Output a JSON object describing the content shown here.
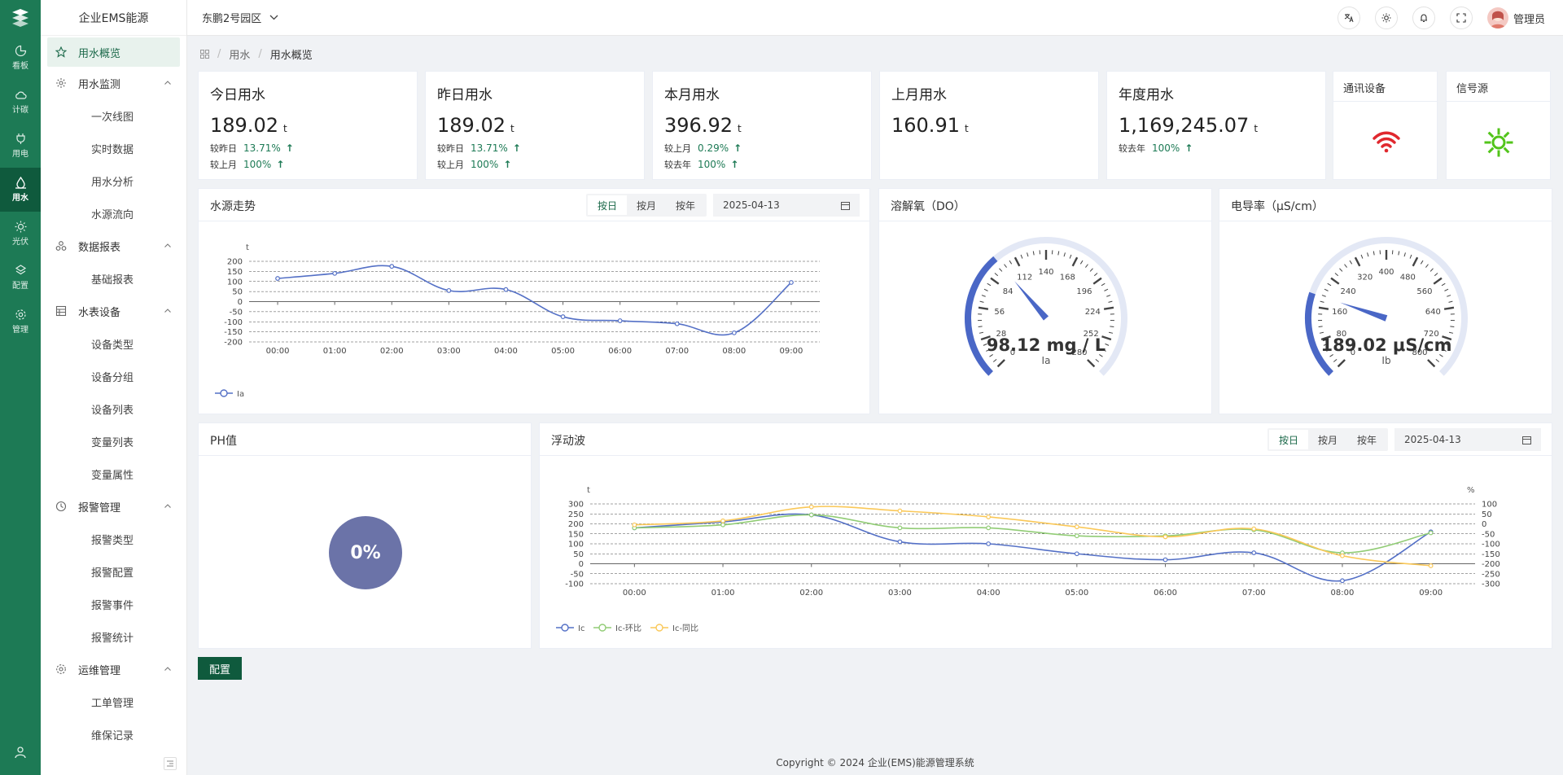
{
  "rail": {
    "items": [
      {
        "label": "看板",
        "icon": "dashboard-icon"
      },
      {
        "label": "计碳",
        "icon": "cloud-icon"
      },
      {
        "label": "用电",
        "icon": "plug-icon"
      },
      {
        "label": "用水",
        "icon": "water-drop-icon"
      },
      {
        "label": "光伏",
        "icon": "sun-icon"
      },
      {
        "label": "配置",
        "icon": "config-icon"
      },
      {
        "label": "管理",
        "icon": "gear-icon"
      }
    ],
    "active_index": 3
  },
  "sidebar": {
    "brand": "企业EMS能源",
    "active_label": "用水概览",
    "groups": [
      {
        "label": "用水监测",
        "children": [
          "一次线图",
          "实时数据",
          "用水分析",
          "水源流向"
        ]
      },
      {
        "label": "数据报表",
        "children": [
          "基础报表"
        ]
      },
      {
        "label": "水表设备",
        "children": [
          "设备类型",
          "设备分组",
          "设备列表",
          "变量列表",
          "变量属性"
        ]
      },
      {
        "label": "报警管理",
        "children": [
          "报警类型",
          "报警配置",
          "报警事件",
          "报警统计"
        ]
      },
      {
        "label": "运维管理",
        "children": [
          "工单管理",
          "维保记录"
        ]
      }
    ]
  },
  "header": {
    "park": "东鹏2号园区",
    "user": "管理员"
  },
  "breadcrumb": {
    "level1": "用水",
    "level2": "用水概览"
  },
  "stats": [
    {
      "title": "今日用水",
      "value": "189.02",
      "unit": "t",
      "cmp": [
        {
          "label": "较昨日",
          "pct": "13.71%",
          "arrow": "↑"
        },
        {
          "label": "较上月",
          "pct": "100%",
          "arrow": "↑"
        }
      ]
    },
    {
      "title": "昨日用水",
      "value": "189.02",
      "unit": "t",
      "cmp": [
        {
          "label": "较昨日",
          "pct": "13.71%",
          "arrow": "↑"
        },
        {
          "label": "较上月",
          "pct": "100%",
          "arrow": "↑"
        }
      ]
    },
    {
      "title": "本月用水",
      "value": "396.92",
      "unit": "t",
      "cmp": [
        {
          "label": "较上月",
          "pct": "0.29%",
          "arrow": "↑"
        },
        {
          "label": "较去年",
          "pct": "100%",
          "arrow": "↑"
        }
      ]
    },
    {
      "title": "上月用水",
      "value": "160.91",
      "unit": "t",
      "cmp": []
    },
    {
      "title": "年度用水",
      "value": "1,169,245.07",
      "unit": "t",
      "cmp": [
        {
          "label": "较去年",
          "pct": "100%",
          "arrow": "↑"
        }
      ]
    }
  ],
  "devices": {
    "comm_title": "通讯设备",
    "signal_title": "信号源",
    "comm_color": "#e0282e",
    "signal_color": "#52c41a"
  },
  "panels": {
    "water_trend": {
      "title": "水源走势",
      "seg": [
        "按日",
        "按月",
        "按年"
      ],
      "date": "2025-04-13"
    },
    "do": {
      "title": "溶解氧（DO）"
    },
    "conductivity": {
      "title": "电导率（μS/cm）"
    },
    "ph": {
      "title": "PH值",
      "value": "0%"
    },
    "wave": {
      "title": "浮动波",
      "seg": [
        "按日",
        "按月",
        "按年"
      ],
      "date": "2025-04-13"
    }
  },
  "config_button": "配置",
  "footer": "Copyright © 2024 企业(EMS)能源管理系统",
  "chart_data": [
    {
      "type": "line",
      "title": "水源走势",
      "ylabel": "t",
      "ylim": [
        -200,
        200
      ],
      "yticks": [
        200,
        150,
        100,
        50,
        0,
        -50,
        -100,
        -150,
        -200
      ],
      "categories": [
        "00:00",
        "01:00",
        "02:00",
        "03:00",
        "04:00",
        "05:00",
        "06:00",
        "07:00",
        "08:00",
        "09:00"
      ],
      "series": [
        {
          "name": "Ia",
          "color": "#5470c6",
          "values": [
            115,
            140,
            175,
            55,
            60,
            -75,
            -95,
            -110,
            -155,
            95
          ]
        }
      ]
    },
    {
      "type": "gauge",
      "title": "溶解氧（DO）",
      "label": "Ia",
      "min": 0,
      "max": 280,
      "ticks": [
        "0",
        "28",
        "56",
        "84",
        "112",
        "140",
        "168",
        "196",
        "224",
        "252",
        "280"
      ],
      "value": 98.12,
      "display": "98.12 mg / L",
      "color": "#4a67c6"
    },
    {
      "type": "gauge",
      "title": "电导率（μS/cm）",
      "label": "Ib",
      "min": 0,
      "max": 800,
      "ticks": [
        "0",
        "80",
        "160",
        "240",
        "320",
        "400",
        "480",
        "560",
        "640",
        "720",
        "800"
      ],
      "value": 189.02,
      "display": "189.02 μS/cm",
      "color": "#4a67c6"
    },
    {
      "type": "line",
      "title": "浮动波",
      "ylabel": "t",
      "y2label": "%",
      "ylim": [
        -100,
        300
      ],
      "y2lim": [
        -300,
        100
      ],
      "yticks": [
        300,
        250,
        200,
        150,
        100,
        50,
        0,
        -50,
        -100
      ],
      "y2ticks": [
        100,
        50,
        0,
        -50,
        -100,
        -150,
        -200,
        -250,
        -300
      ],
      "categories": [
        "00:00",
        "01:00",
        "02:00",
        "03:00",
        "04:00",
        "05:00",
        "06:00",
        "07:00",
        "08:00",
        "09:00"
      ],
      "series": [
        {
          "name": "Ic",
          "color": "#5470c6",
          "values": [
            180,
            210,
            245,
            110,
            100,
            50,
            20,
            55,
            -85,
            160
          ]
        },
        {
          "name": "Ic-环比",
          "color": "#91cc75",
          "values": [
            180,
            195,
            245,
            180,
            180,
            140,
            140,
            170,
            55,
            155
          ]
        },
        {
          "name": "Ic-同比",
          "color": "#fac858",
          "values": [
            195,
            215,
            285,
            265,
            235,
            185,
            135,
            175,
            40,
            -10
          ]
        }
      ]
    }
  ]
}
